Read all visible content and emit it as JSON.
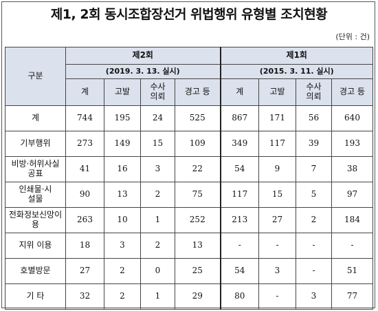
{
  "title": "제1, 2회 동시조합장선거 위법행위 유형별 조치현황",
  "unit": "(단위 : 건)",
  "header": {
    "category": "구분",
    "groups": [
      {
        "name": "제2회",
        "date": "(2019. 3. 13. 실시)"
      },
      {
        "name": "제1회",
        "date": "(2015. 3. 11. 실시)"
      }
    ],
    "columns": [
      "계",
      "고발",
      "수사의뢰",
      "경고 등"
    ]
  },
  "rows": [
    {
      "label": "계",
      "v2": [
        "744",
        "195",
        "24",
        "525"
      ],
      "v1": [
        "867",
        "171",
        "56",
        "640"
      ]
    },
    {
      "label": "기부행위",
      "v2": [
        "273",
        "149",
        "15",
        "109"
      ],
      "v1": [
        "349",
        "117",
        "39",
        "193"
      ]
    },
    {
      "label": "비방·허위사실공표",
      "v2": [
        "41",
        "16",
        "3",
        "22"
      ],
      "v1": [
        "54",
        "9",
        "7",
        "38"
      ]
    },
    {
      "label": "인쇄물·시설물",
      "v2": [
        "90",
        "13",
        "2",
        "75"
      ],
      "v1": [
        "117",
        "15",
        "5",
        "97"
      ]
    },
    {
      "label": "전화정보신망이용",
      "v2": [
        "263",
        "10",
        "1",
        "252"
      ],
      "v1": [
        "213",
        "27",
        "2",
        "184"
      ]
    },
    {
      "label": "지위 이용",
      "v2": [
        "18",
        "3",
        "2",
        "13"
      ],
      "v1": [
        "-",
        "-",
        "-",
        "-"
      ]
    },
    {
      "label": "호별방문",
      "v2": [
        "27",
        "2",
        "0",
        "25"
      ],
      "v1": [
        "54",
        "3",
        "-",
        "51"
      ]
    },
    {
      "label": "기 타",
      "v2": [
        "32",
        "2",
        "1",
        "29"
      ],
      "v1": [
        "80",
        "-",
        "3",
        "77"
      ]
    }
  ]
}
